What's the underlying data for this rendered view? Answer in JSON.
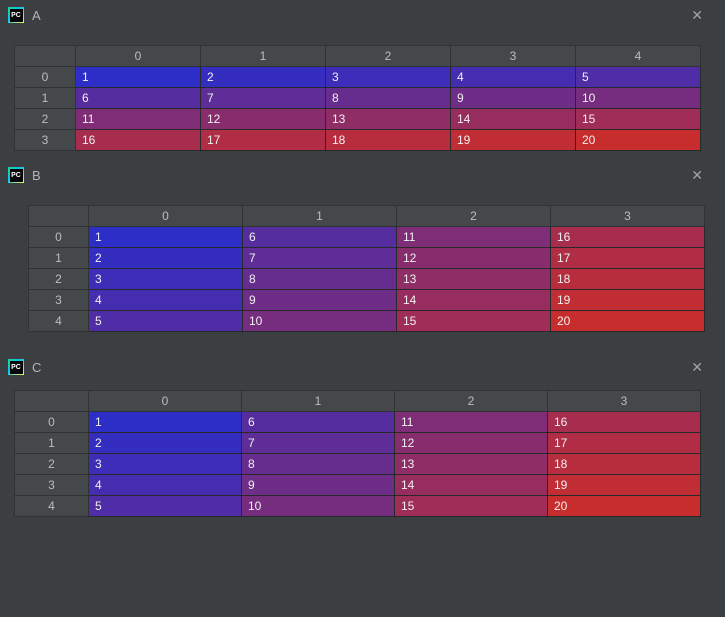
{
  "ui": {
    "close_glyph": "✕",
    "icon_text": "PC"
  },
  "colors": {
    "background": "#3c3f41",
    "header_bg": "#45484b",
    "header_text": "#bcbcbc",
    "cell_text": "#f0f0f0",
    "title_text": "#b2b4b6"
  },
  "heatmap": {
    "min_value": 1,
    "max_value": 20,
    "min_color": "#2d2dc8",
    "max_color": "#c82d2d"
  },
  "windows": [
    {
      "title": "A",
      "icon_text": "PC",
      "col_headers": [
        "0",
        "1",
        "2",
        "3",
        "4"
      ],
      "row_headers": [
        "0",
        "1",
        "2",
        "3"
      ],
      "cells": [
        [
          1,
          2,
          3,
          4,
          5
        ],
        [
          6,
          7,
          8,
          9,
          10
        ],
        [
          11,
          12,
          13,
          14,
          15
        ],
        [
          16,
          17,
          18,
          19,
          20
        ]
      ]
    },
    {
      "title": "B",
      "icon_text": "PC",
      "col_headers": [
        "0",
        "1",
        "2",
        "3"
      ],
      "row_headers": [
        "0",
        "1",
        "2",
        "3",
        "4"
      ],
      "cells": [
        [
          1,
          6,
          11,
          16
        ],
        [
          2,
          7,
          12,
          17
        ],
        [
          3,
          8,
          13,
          18
        ],
        [
          4,
          9,
          14,
          19
        ],
        [
          5,
          10,
          15,
          20
        ]
      ]
    },
    {
      "title": "C",
      "icon_text": "PC",
      "col_headers": [
        "0",
        "1",
        "2",
        "3"
      ],
      "row_headers": [
        "0",
        "1",
        "2",
        "3",
        "4"
      ],
      "cells": [
        [
          1,
          6,
          11,
          16
        ],
        [
          2,
          7,
          12,
          17
        ],
        [
          3,
          8,
          13,
          18
        ],
        [
          4,
          9,
          14,
          19
        ],
        [
          5,
          10,
          15,
          20
        ]
      ]
    }
  ]
}
